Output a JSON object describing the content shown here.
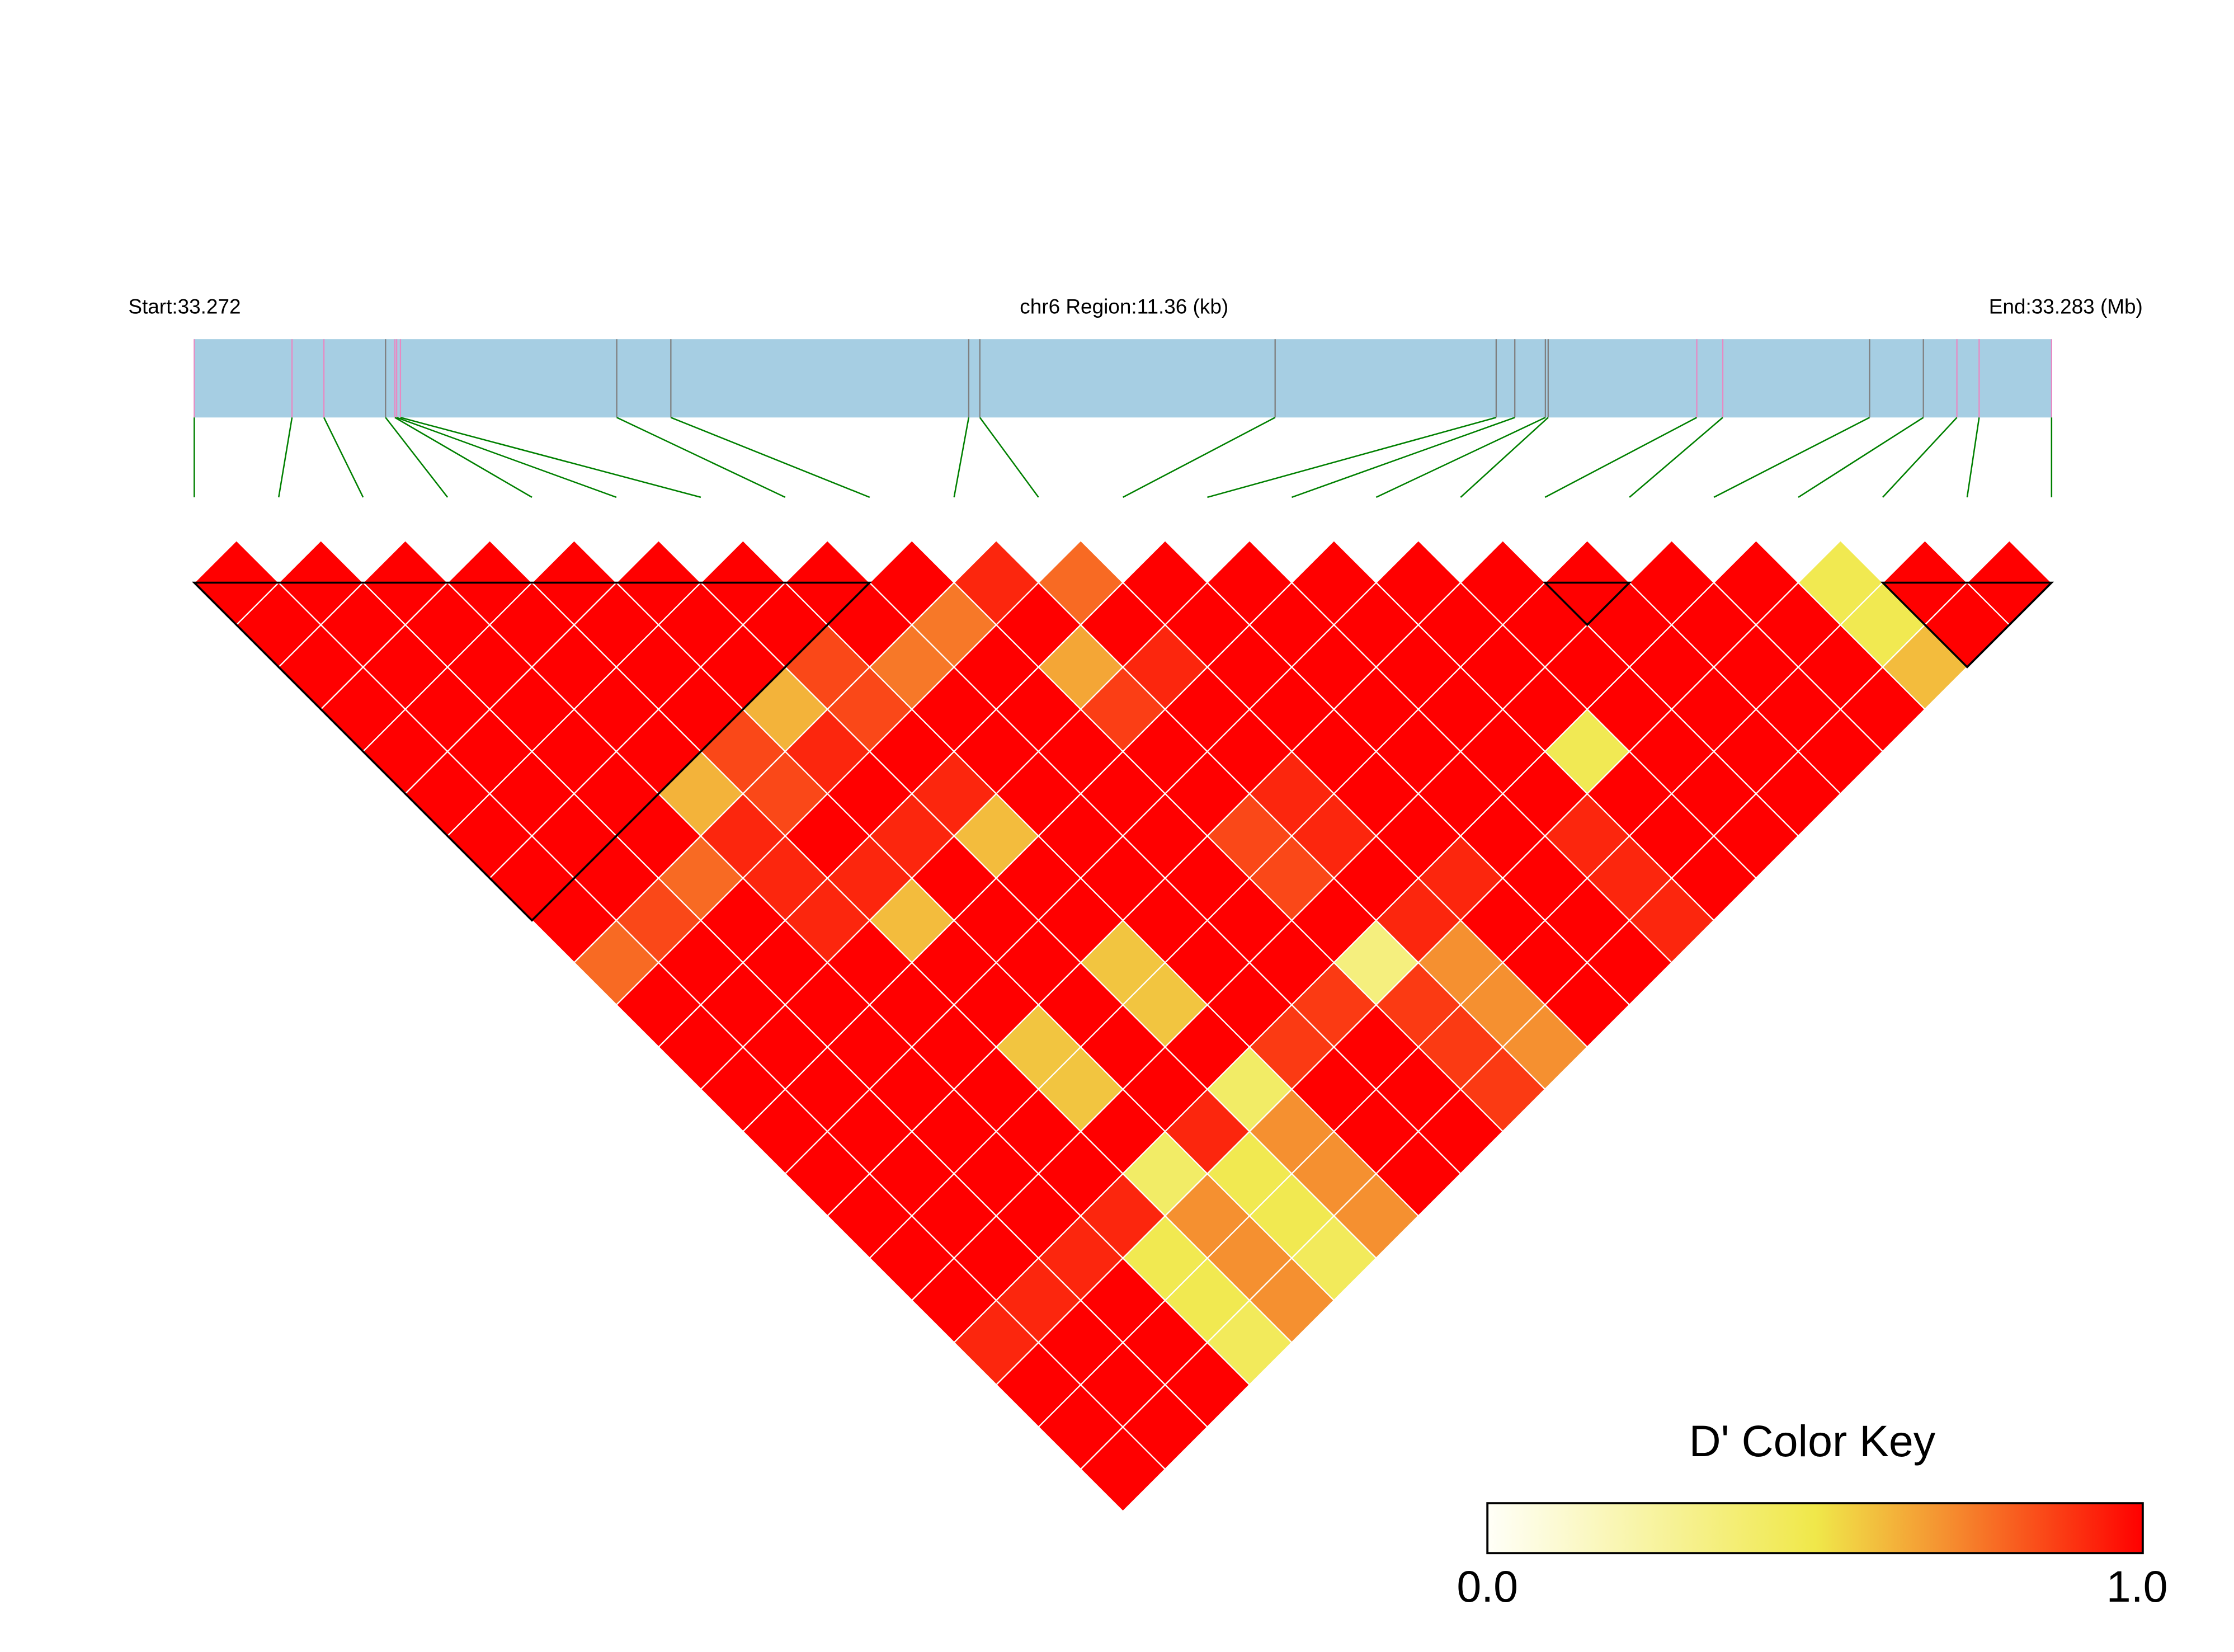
{
  "header": {
    "start_label": "Start:33.272",
    "region_label": "chr6 Region:11.36 (kb)",
    "end_label": "End:33.283 (Mb)"
  },
  "color_key": {
    "title": "D' Color Key",
    "min_label": "0.0",
    "max_label": "1.0",
    "stops": [
      {
        "value": 0.0,
        "color": "#FFFFF8"
      },
      {
        "value": 0.5,
        "color": "#F0E84A"
      },
      {
        "value": 0.7,
        "color": "#F59030"
      },
      {
        "value": 1.0,
        "color": "#FF0000"
      }
    ]
  },
  "colors": {
    "region_bar": "#A6CEE3",
    "marker_pink": "#E78AC3",
    "marker_grey": "#7F7F7F",
    "connector": "#008000",
    "cell_border": "#FFFFFF",
    "block_outline": "#000000"
  },
  "chart_data": {
    "type": "heatmap",
    "layout": "LD triangle",
    "metric": "D'",
    "value_range": [
      0,
      1
    ],
    "chromosome": "chr6",
    "region_start_mb": 33.272,
    "region_end_mb": 33.283,
    "region_length_kb": 11.36,
    "snp_count": 23,
    "snp_positions_kb": [
      0,
      0.598,
      0.793,
      1.17,
      1.227,
      1.238,
      1.261,
      2.584,
      2.915,
      4.737,
      4.805,
      6.611,
      7.963,
      8.077,
      8.264,
      8.281,
      9.19,
      9.349,
      10.247,
      10.576,
      10.781,
      10.917,
      11.36
    ],
    "snp_marker_colors": [
      "pink",
      "pink",
      "pink",
      "grey",
      "pink",
      "pink",
      "pink",
      "grey",
      "grey",
      "grey",
      "grey",
      "grey",
      "grey",
      "grey",
      "grey",
      "grey",
      "pink",
      "pink",
      "grey",
      "grey",
      "pink",
      "pink",
      "pink"
    ],
    "haplotype_blocks": [
      [
        0,
        8
      ],
      [
        16,
        17
      ],
      [
        20,
        22
      ]
    ],
    "d_prime_rows": [
      [
        1,
        1,
        1,
        1,
        1,
        1,
        1,
        1,
        1,
        0.78,
        1,
        1,
        1,
        1,
        1,
        1,
        1,
        1,
        0.92,
        1,
        1,
        1
      ],
      [
        1,
        1,
        1,
        1,
        1,
        1,
        1,
        1,
        0.85,
        1,
        1,
        1,
        1,
        1,
        1,
        1,
        1,
        0.92,
        1,
        1,
        1
      ],
      [
        1,
        1,
        1,
        1,
        1,
        1,
        1,
        0.78,
        1,
        1,
        1,
        1,
        1,
        1,
        1,
        1,
        0.92,
        1,
        1,
        1
      ],
      [
        1,
        1,
        1,
        1,
        1,
        0.62,
        0.92,
        0.92,
        0.92,
        1,
        1,
        1,
        1,
        1,
        1,
        0.92,
        0.48,
        0.48,
        0.45
      ],
      [
        1,
        1,
        1,
        1,
        0.85,
        0.85,
        1,
        0.92,
        0.6,
        1,
        1,
        0.58,
        0.58,
        1,
        0.42,
        0.7,
        0.7,
        0.7
      ],
      [
        1,
        1,
        1,
        0.62,
        0.92,
        1,
        0.92,
        1,
        1,
        1,
        1,
        1,
        1,
        0.92,
        0.48,
        0.48,
        0.45
      ],
      [
        1,
        1,
        0.85,
        0.85,
        1,
        0.92,
        0.6,
        1,
        1,
        0.58,
        0.58,
        1,
        0.42,
        0.7,
        0.7,
        0.7
      ],
      [
        1,
        1,
        0.75,
        1,
        1,
        1,
        1,
        1,
        1,
        1,
        1,
        0.88,
        1,
        1,
        1
      ],
      [
        1,
        0.75,
        1,
        1,
        1,
        1,
        1,
        1,
        1,
        1,
        0.88,
        1,
        1,
        1
      ],
      [
        0.92,
        1,
        0.65,
        0.87,
        1,
        1,
        0.85,
        0.85,
        1,
        0.35,
        0.88,
        0.88,
        0.88
      ],
      [
        0.78,
        1,
        0.92,
        1,
        1,
        0.92,
        0.92,
        1,
        0.92,
        0.7,
        0.7,
        0.7
      ],
      [
        1,
        1,
        1,
        1,
        1,
        1,
        1,
        0.92,
        1,
        1,
        1
      ],
      [
        1,
        1,
        1,
        1,
        1,
        1,
        1,
        1,
        1,
        1
      ],
      [
        1,
        1,
        1,
        1,
        1,
        1,
        0.92,
        0.92,
        0.92
      ],
      [
        1,
        1,
        1,
        1,
        0.47,
        1,
        1,
        1
      ],
      [
        1,
        1,
        1,
        1,
        1,
        1,
        1
      ],
      [
        1,
        1,
        1,
        1,
        1,
        1
      ],
      [
        1,
        1,
        1,
        1,
        1
      ],
      [
        1,
        1,
        1,
        1
      ],
      [
        0.48,
        0.48,
        0.6
      ],
      [
        1,
        1
      ],
      [
        1
      ]
    ]
  }
}
